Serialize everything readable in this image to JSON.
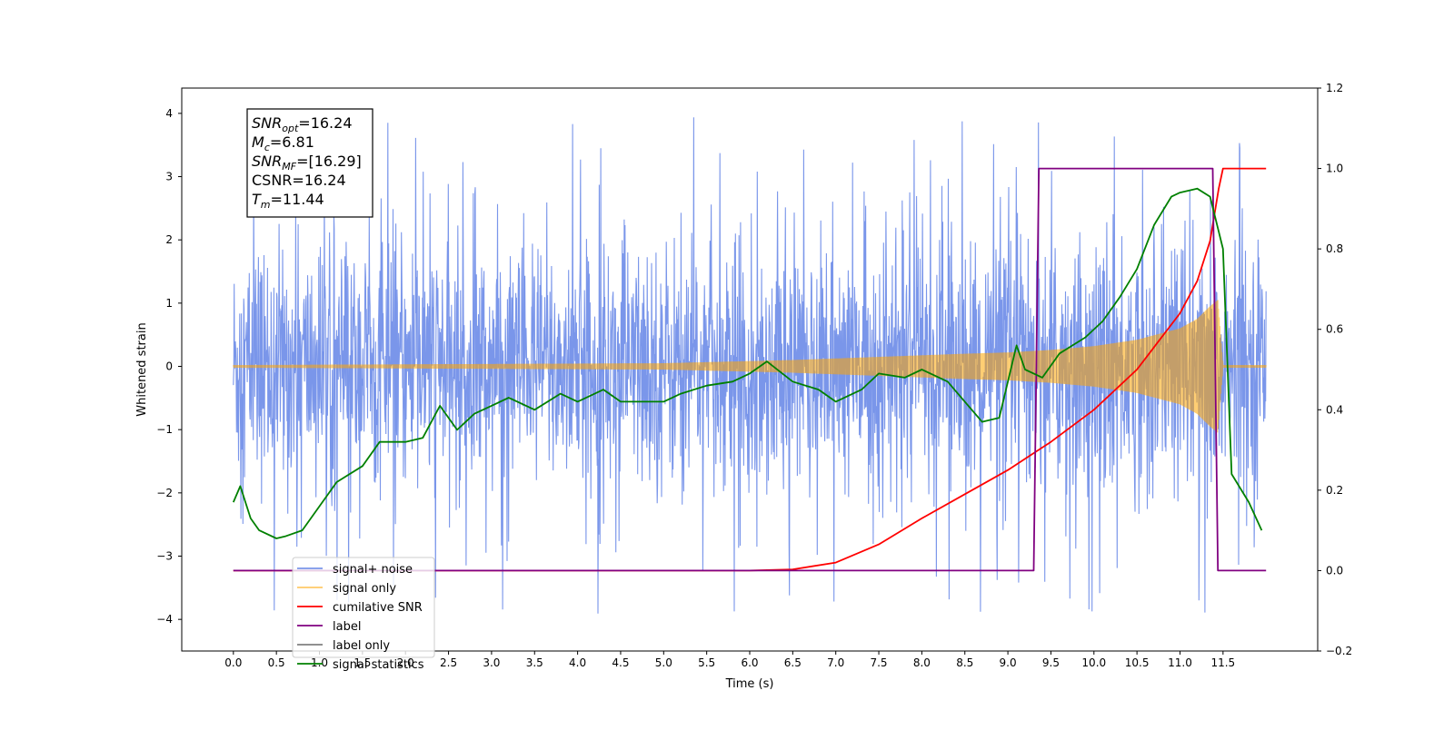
{
  "chart_data": {
    "type": "line",
    "xlabel": "Time (s)",
    "ylabel_left": "Whitened strain",
    "ylabel_right": "",
    "xlim": [
      -0.6,
      12.6
    ],
    "ylim_left": [
      -4.5,
      4.4
    ],
    "ylim_right": [
      -0.2,
      1.2
    ],
    "grid": false,
    "x_ticks": [
      0.0,
      0.5,
      1.0,
      1.5,
      2.0,
      2.5,
      3.0,
      3.5,
      4.0,
      4.5,
      5.0,
      5.5,
      6.0,
      6.5,
      7.0,
      7.5,
      8.0,
      8.5,
      9.0,
      9.5,
      10.0,
      10.5,
      11.0,
      11.5
    ],
    "x_tick_labels": [
      "0.0",
      "0.5",
      "1.0",
      "1.5",
      "2.0",
      "2.5",
      "3.0",
      "3.5",
      "4.0",
      "4.5",
      "5.0",
      "5.5",
      "6.0",
      "6.5",
      "7.0",
      "7.5",
      "8.0",
      "8.5",
      "9.0",
      "9.5",
      "10.0",
      "10.5",
      "11.0",
      "11.5"
    ],
    "y_left_ticks": [
      4,
      3,
      2,
      1,
      0,
      -1,
      -2,
      -3,
      -4
    ],
    "y_left_tick_labels": [
      "4",
      "3",
      "2",
      "1",
      "0",
      "−1",
      "−2",
      "−3",
      "−4"
    ],
    "y_right_ticks": [
      1.2,
      1.0,
      0.8,
      0.6,
      0.4,
      0.2,
      0.0,
      -0.2
    ],
    "y_right_tick_labels": [
      "1.2",
      "1.0",
      "0.8",
      "0.6",
      "0.4",
      "0.2",
      "0.0",
      "−0.2"
    ],
    "legend_position": "lower-left",
    "annotation": {
      "lines": [
        {
          "base": "SNR",
          "sub": "opt",
          "rest": "=16.24"
        },
        {
          "base": "M",
          "sub": "c",
          "rest": "=6.81"
        },
        {
          "base": "SNR",
          "sub": "MF",
          "rest": "=[16.29]"
        },
        {
          "base": "CSNR",
          "sub": "",
          "rest": "=16.24"
        },
        {
          "base": "T",
          "sub": "m",
          "rest": "=11.44"
        }
      ]
    },
    "series": [
      {
        "name": "signal+ noise",
        "color": "#4169e1",
        "axis": "left",
        "kind": "noise",
        "t_start": 0.0,
        "t_end": 12.0,
        "typical_band": [
          -2.0,
          2.0
        ],
        "peak_range": [
          -4.1,
          4.0
        ]
      },
      {
        "name": "signal only",
        "color": "#ffa500",
        "axis": "left",
        "kind": "chirp",
        "t_start": 0.0,
        "t_merge": 11.44,
        "t_end": 12.0,
        "envelope_x": [
          0.0,
          5.0,
          6.5,
          7.5,
          8.5,
          9.0,
          9.5,
          10.0,
          10.5,
          11.0,
          11.2,
          11.35,
          11.44,
          11.5
        ],
        "envelope_y": [
          0.02,
          0.05,
          0.1,
          0.15,
          0.2,
          0.22,
          0.26,
          0.32,
          0.42,
          0.6,
          0.75,
          0.95,
          1.05,
          0.02
        ]
      },
      {
        "name": "cumilative SNR",
        "color": "#ff0000",
        "axis": "right",
        "x": [
          0.0,
          6.0,
          6.5,
          7.0,
          7.5,
          8.0,
          8.5,
          9.0,
          9.5,
          10.0,
          10.5,
          11.0,
          11.2,
          11.35,
          11.45,
          11.5,
          12.0
        ],
        "y": [
          0.0,
          0.0,
          0.003,
          0.02,
          0.065,
          0.13,
          0.19,
          0.25,
          0.32,
          0.4,
          0.5,
          0.64,
          0.72,
          0.82,
          0.95,
          1.0,
          1.0
        ]
      },
      {
        "name": "label",
        "color": "#800080",
        "axis": "right",
        "x": [
          0.0,
          9.3,
          9.36,
          11.38,
          11.44,
          12.0
        ],
        "y": [
          0.0,
          0.0,
          1.0,
          1.0,
          0.0,
          0.0
        ]
      },
      {
        "name": "label only",
        "color": "#808080",
        "axis": "right",
        "x": [],
        "y": []
      },
      {
        "name": "signal statistics",
        "color": "#008000",
        "axis": "right",
        "x": [
          0.0,
          0.08,
          0.2,
          0.3,
          0.5,
          0.6,
          0.8,
          1.0,
          1.2,
          1.5,
          1.7,
          2.0,
          2.2,
          2.4,
          2.6,
          2.8,
          3.0,
          3.2,
          3.5,
          3.8,
          4.0,
          4.3,
          4.5,
          4.8,
          5.0,
          5.2,
          5.5,
          5.8,
          6.0,
          6.2,
          6.5,
          6.8,
          7.0,
          7.3,
          7.5,
          7.8,
          8.0,
          8.3,
          8.5,
          8.7,
          8.9,
          9.1,
          9.2,
          9.3,
          9.4,
          9.6,
          9.9,
          10.1,
          10.3,
          10.5,
          10.7,
          10.9,
          11.0,
          11.2,
          11.35,
          11.5,
          11.6,
          11.8,
          11.95
        ],
        "y": [
          0.17,
          0.21,
          0.13,
          0.1,
          0.08,
          0.085,
          0.1,
          0.16,
          0.22,
          0.26,
          0.32,
          0.32,
          0.33,
          0.41,
          0.35,
          0.39,
          0.41,
          0.43,
          0.4,
          0.44,
          0.42,
          0.45,
          0.42,
          0.42,
          0.42,
          0.44,
          0.46,
          0.47,
          0.49,
          0.52,
          0.47,
          0.45,
          0.42,
          0.45,
          0.49,
          0.48,
          0.5,
          0.47,
          0.42,
          0.37,
          0.38,
          0.56,
          0.5,
          0.49,
          0.48,
          0.54,
          0.58,
          0.62,
          0.68,
          0.75,
          0.86,
          0.93,
          0.94,
          0.95,
          0.93,
          0.8,
          0.24,
          0.17,
          0.1
        ]
      }
    ]
  }
}
